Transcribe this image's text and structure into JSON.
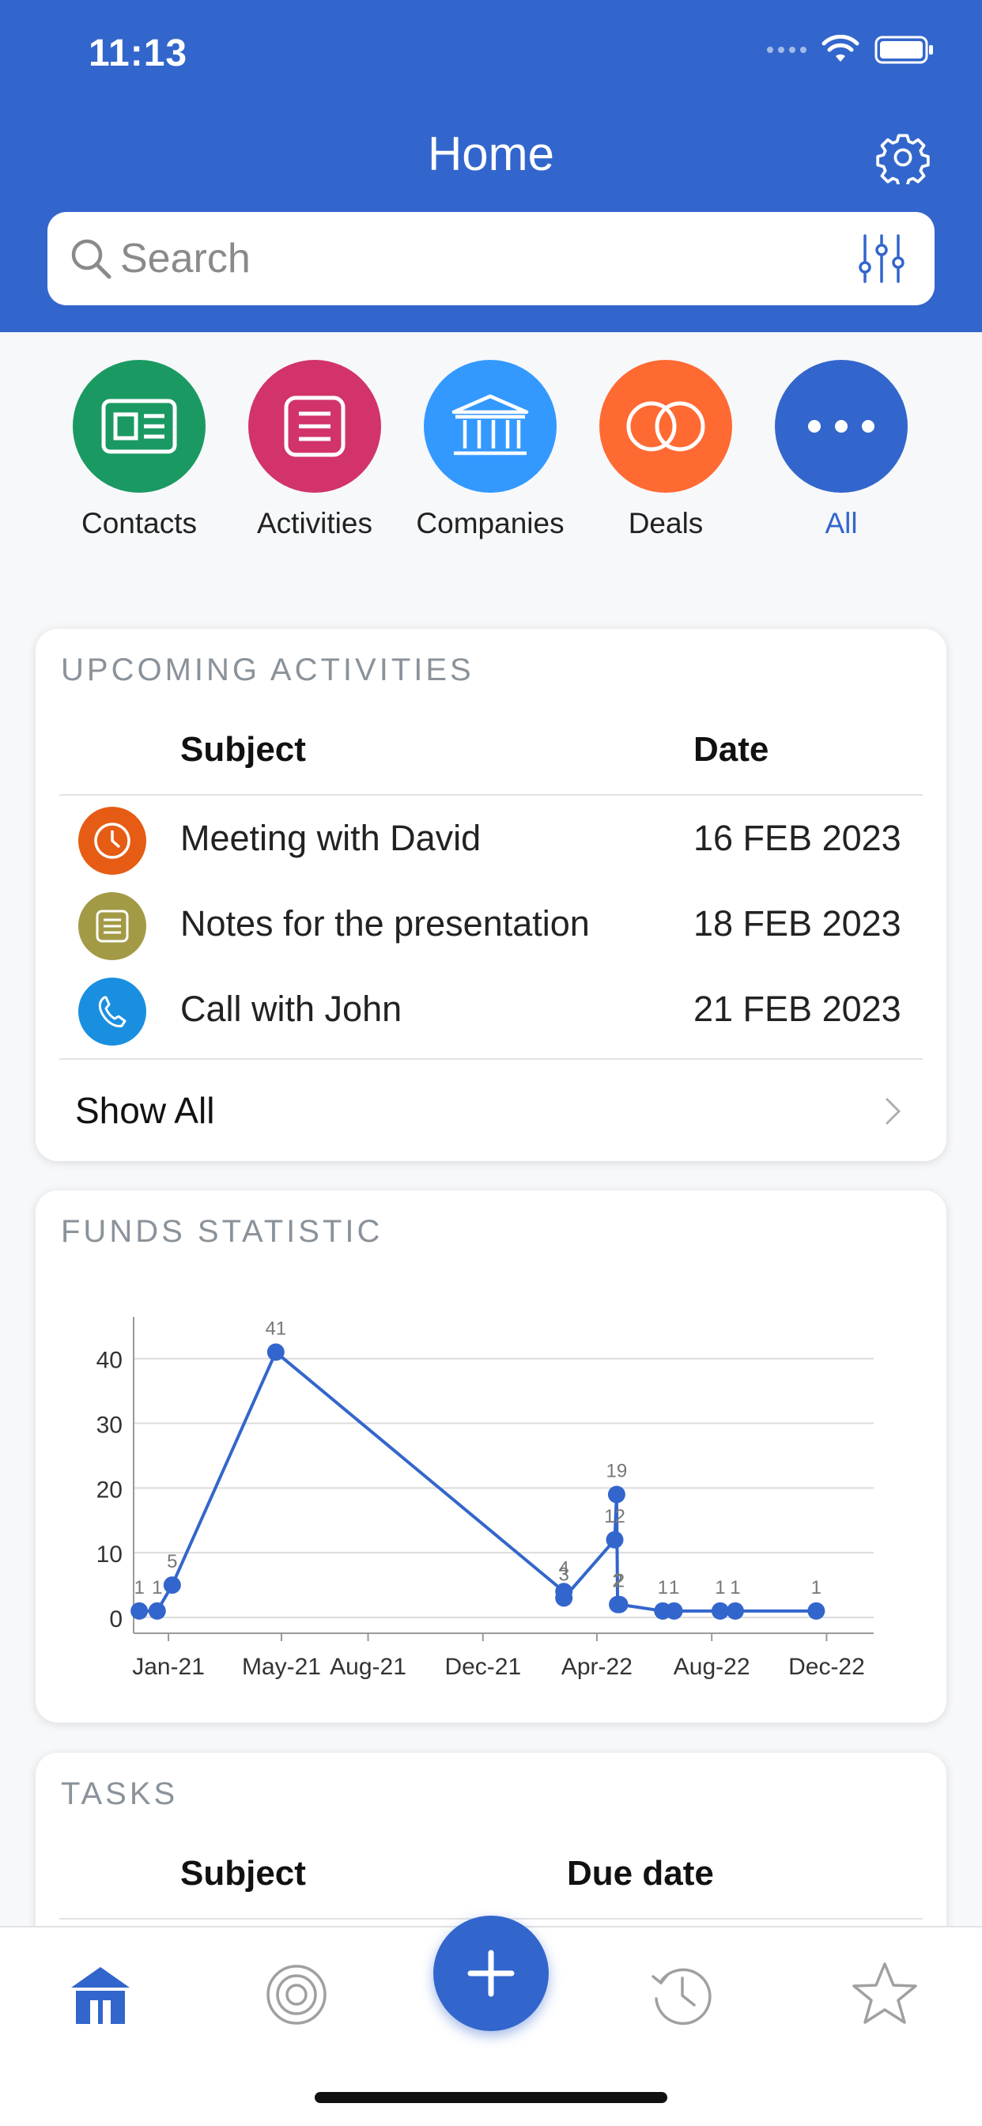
{
  "status_bar": {
    "time": "11:13"
  },
  "header": {
    "title": "Home"
  },
  "search": {
    "placeholder": "Search"
  },
  "categories": [
    {
      "label": "Contacts",
      "color": "#1a9a62",
      "icon": "contact-card-icon"
    },
    {
      "label": "Activities",
      "color": "#d2336b",
      "icon": "list-icon"
    },
    {
      "label": "Companies",
      "color": "#3399ff",
      "icon": "bank-building-icon"
    },
    {
      "label": "Deals",
      "color": "#ff6a33",
      "icon": "rings-icon"
    },
    {
      "label": "All",
      "color": "#3366cc",
      "icon": "more-icon"
    }
  ],
  "upcoming": {
    "title": "UPCOMING ACTIVITIES",
    "columns": {
      "subject": "Subject",
      "date": "Date"
    },
    "rows": [
      {
        "subject": "Meeting with David",
        "date": "16 FEB 2023",
        "icon": "clock-icon",
        "color": "#e65c14"
      },
      {
        "subject": "Notes for the presentation",
        "date": "18 FEB 2023",
        "icon": "note-icon",
        "color": "#a39a46"
      },
      {
        "subject": "Call with John",
        "date": "21 FEB 2023",
        "icon": "phone-icon",
        "color": "#1a8fe0"
      }
    ],
    "show_all": "Show All"
  },
  "funds": {
    "title": "FUNDS STATISTIC"
  },
  "chart_data": {
    "type": "line",
    "title": "",
    "xlabel": "",
    "ylabel": "",
    "x_tick_labels": [
      "Jan-21",
      "May-21",
      "Aug-21",
      "Dec-21",
      "Apr-22",
      "Aug-22",
      "Dec-22"
    ],
    "y_ticks": [
      0,
      10,
      20,
      30,
      40
    ],
    "ylim": [
      0,
      44
    ],
    "grid": true,
    "color": "#3366cc",
    "series": [
      {
        "points": [
          {
            "x": "2020-12-01",
            "y": 1
          },
          {
            "x": "2020-12-20",
            "y": 1
          },
          {
            "x": "2021-01-05",
            "y": 5
          },
          {
            "x": "2021-04-25",
            "y": 41
          },
          {
            "x": "2022-02-25",
            "y": 4
          },
          {
            "x": "2022-02-25",
            "y": 3
          },
          {
            "x": "2022-04-20",
            "y": 12
          },
          {
            "x": "2022-04-22",
            "y": 19
          },
          {
            "x": "2022-04-23",
            "y": 2
          },
          {
            "x": "2022-04-25",
            "y": 2
          },
          {
            "x": "2022-06-10",
            "y": 1
          },
          {
            "x": "2022-06-22",
            "y": 1
          },
          {
            "x": "2022-08-10",
            "y": 1
          },
          {
            "x": "2022-08-26",
            "y": 1
          },
          {
            "x": "2022-11-20",
            "y": 1
          }
        ]
      }
    ]
  },
  "tasks": {
    "title": "TASKS",
    "columns": {
      "subject": "Subject",
      "due": "Due date"
    }
  },
  "tabbar": {
    "tabs": [
      {
        "icon": "home-icon",
        "active": true
      },
      {
        "icon": "target-icon",
        "active": false
      },
      {
        "icon": "history-icon",
        "active": false
      },
      {
        "icon": "star-icon",
        "active": false
      }
    ],
    "fab_icon": "plus-icon"
  }
}
